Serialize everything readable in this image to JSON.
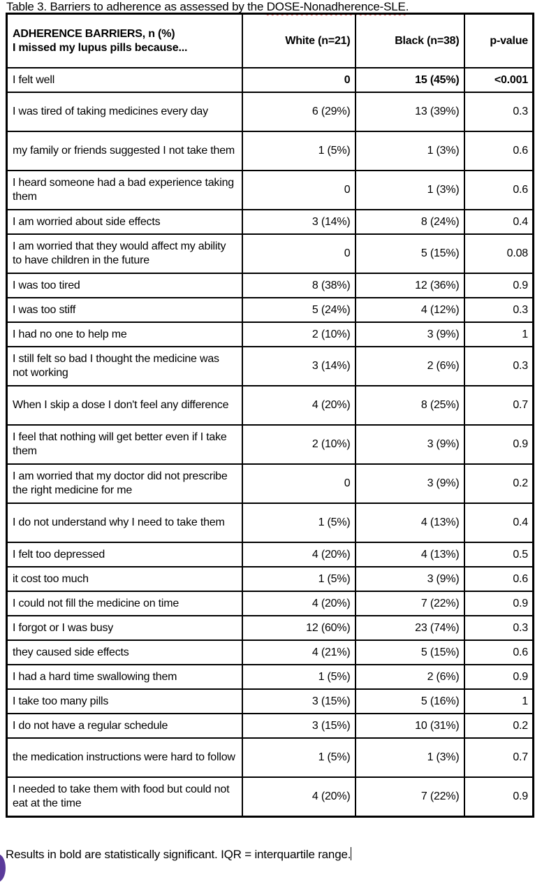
{
  "caption": {
    "prefix": "Table 3. Barriers to adherence as assessed by the ",
    "instrument": "DOSE-Nonadherence-SLE",
    "suffix": "."
  },
  "header": {
    "col1_line1": "ADHERENCE BARRIERS, n (%)",
    "col1_line2": "I missed my lupus pills because...",
    "white": "White (n=21)",
    "black": "Black (n=38)",
    "p": "p-value"
  },
  "rows": [
    {
      "label": "I felt well",
      "white": "0",
      "black": "15 (45%)",
      "p": "<0.001",
      "bold": true
    },
    {
      "label": "I was tired of taking medicines every day",
      "white": "6 (29%)",
      "black": "13 (39%)",
      "p": "0.3"
    },
    {
      "label": "my family or friends suggested I not take them",
      "white": "1 (5%)",
      "black": "1 (3%)",
      "p": "0.6"
    },
    {
      "label": "I heard someone had a bad experience taking them",
      "white": "0",
      "black": "1 (3%)",
      "p": "0.6"
    },
    {
      "label": "I am worried about side effects",
      "white": "3 (14%)",
      "black": "8 (24%)",
      "p": "0.4"
    },
    {
      "label": "I am worried that they would affect my ability to have children in the future",
      "white": "0",
      "black": "5 (15%)",
      "p": "0.08"
    },
    {
      "label": "I was too tired",
      "white": "8 (38%)",
      "black": "12 (36%)",
      "p": "0.9"
    },
    {
      "label": "I was too stiff",
      "white": "5 (24%)",
      "black": "4 (12%)",
      "p": "0.3"
    },
    {
      "label": "I had no one to help me",
      "white": "2 (10%)",
      "black": "3 (9%)",
      "p": "1"
    },
    {
      "label": "I still felt so bad I thought the medicine was not working",
      "white": "3 (14%)",
      "black": "2 (6%)",
      "p": "0.3"
    },
    {
      "label": " When I skip a dose I don't feel any difference",
      "white": "4 (20%)",
      "black": "8 (25%)",
      "p": "0.7"
    },
    {
      "label": "I feel that nothing will get better even if I take them",
      "white": "2 (10%)",
      "black": "3 (9%)",
      "p": "0.9"
    },
    {
      "label": "I am worried that my doctor did not prescribe the right medicine for me",
      "white": "0",
      "black": "3 (9%)",
      "p": "0.2"
    },
    {
      "label": "I do not understand why I need to take them",
      "white": "1 (5%)",
      "black": "4 (13%)",
      "p": "0.4"
    },
    {
      "label": "I felt too depressed",
      "white": "4 (20%)",
      "black": "4 (13%)",
      "p": "0.5"
    },
    {
      "label": "it cost too much",
      "white": "1 (5%)",
      "black": "3 (9%)",
      "p": "0.6"
    },
    {
      "label": "I could not fill the medicine on time",
      "white": "4 (20%)",
      "black": "7 (22%)",
      "p": "0.9"
    },
    {
      "label": "I forgot or I was busy",
      "white": "12 (60%)",
      "black": "23 (74%)",
      "p": "0.3"
    },
    {
      "label": "they caused side effects",
      "white": "4 (21%)",
      "black": "5 (15%)",
      "p": "0.6"
    },
    {
      "label": "I had a hard time swallowing them",
      "white": "1 (5%)",
      "black": "2 (6%)",
      "p": "0.9"
    },
    {
      "label": "I take too many pills",
      "white": "3 (15%)",
      "black": "5 (16%)",
      "p": "1"
    },
    {
      "label": "I do not have a regular schedule",
      "white": "3 (15%)",
      "black": "10 (31%)",
      "p": "0.2"
    },
    {
      "label": "the medication instructions were hard to follow",
      "white": "1 (5%)",
      "black": "1 (3%)",
      "p": "0.7"
    },
    {
      "label": "I needed to take them with food but could not eat at the time",
      "white": "4 (20%)",
      "black": "7 (22%)",
      "p": "0.9"
    }
  ],
  "footnote": "Results in bold are statistically significant. IQR = interquartile range."
}
